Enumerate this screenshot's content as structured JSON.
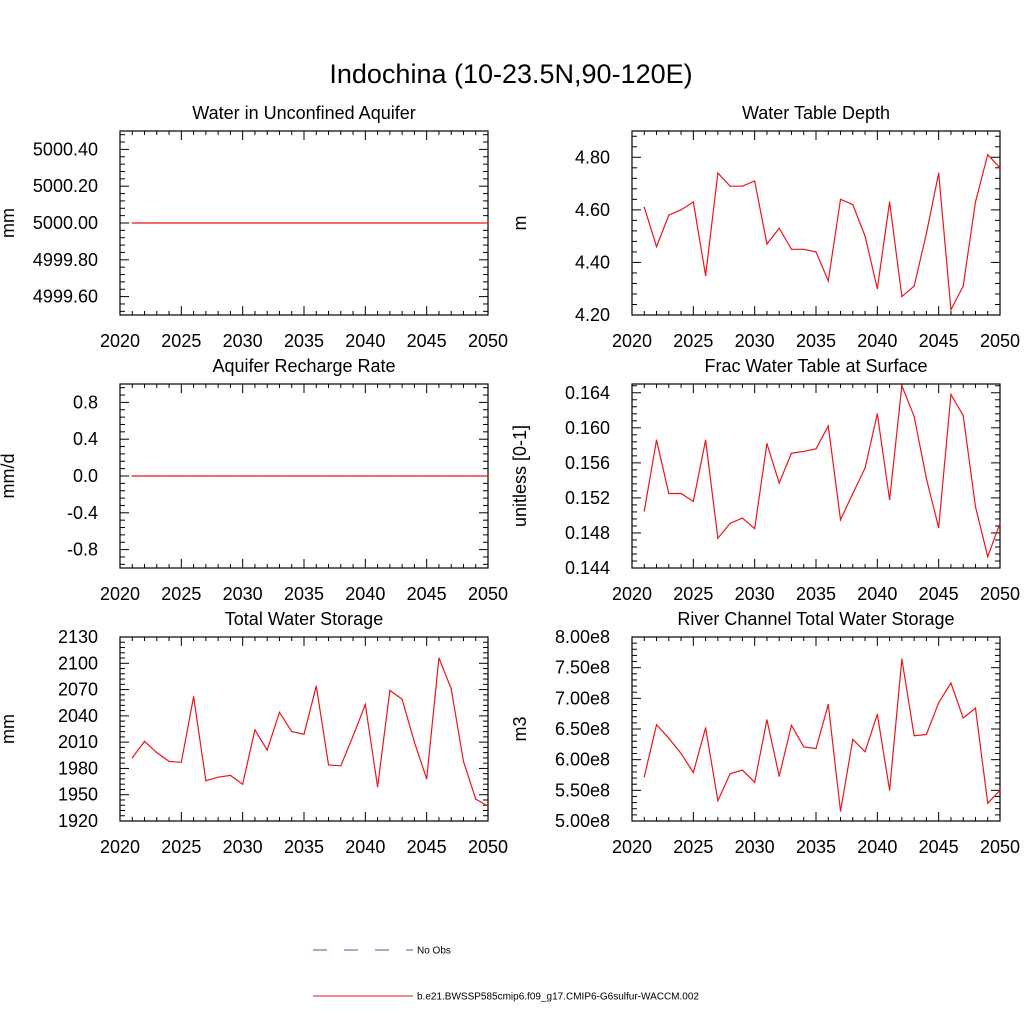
{
  "figure": {
    "title": "Indochina (10-23.5N,90-120E)"
  },
  "colors": {
    "series_line": "#e8161b",
    "obs_line": "#4a5aa8",
    "axis": "#000000",
    "background": "#ffffff"
  },
  "legend": {
    "entries": [
      {
        "label": "No Obs",
        "style": "dashed",
        "color": "#4a5aa8"
      },
      {
        "label": "b.e21.BWSSP585cmip6.f09_g17.CMIP6-G6sulfur-WACCM.002",
        "style": "solid",
        "color": "#e8161b"
      }
    ]
  },
  "chart_data": [
    {
      "type": "line",
      "title": "Water in Unconfined Aquifer",
      "ylabel": "mm",
      "xlim": [
        2020,
        2050
      ],
      "ylim": [
        4999.5,
        5000.5
      ],
      "xticks": [
        2020,
        2025,
        2030,
        2035,
        2040,
        2045,
        2050
      ],
      "xticklabels": [
        "2020",
        "2025",
        "2030",
        "2035",
        "2040",
        "2045",
        "2050"
      ],
      "yticks": [
        4999.6,
        4999.8,
        5000.0,
        5000.2,
        5000.4
      ],
      "yticklabels": [
        "4999.60",
        "4999.80",
        "5000.00",
        "5000.20",
        "5000.40"
      ],
      "yminor_step": 0.04,
      "x": [
        2021,
        2022,
        2023,
        2024,
        2025,
        2026,
        2027,
        2028,
        2029,
        2030,
        2031,
        2032,
        2033,
        2034,
        2035,
        2036,
        2037,
        2038,
        2039,
        2040,
        2041,
        2042,
        2043,
        2044,
        2045,
        2046,
        2047,
        2048,
        2049,
        2050
      ],
      "series": [
        {
          "values": [
            5000,
            5000,
            5000,
            5000,
            5000,
            5000,
            5000,
            5000,
            5000,
            5000,
            5000,
            5000,
            5000,
            5000,
            5000,
            5000,
            5000,
            5000,
            5000,
            5000,
            5000,
            5000,
            5000,
            5000,
            5000,
            5000,
            5000,
            5000,
            5000,
            5000
          ]
        }
      ]
    },
    {
      "type": "line",
      "title": "Water Table Depth",
      "ylabel": "m",
      "xlim": [
        2020,
        2050
      ],
      "ylim": [
        4.2,
        4.9
      ],
      "xticks": [
        2020,
        2025,
        2030,
        2035,
        2040,
        2045,
        2050
      ],
      "xticklabels": [
        "2020",
        "2025",
        "2030",
        "2035",
        "2040",
        "2045",
        "2050"
      ],
      "yticks": [
        4.2,
        4.4,
        4.6,
        4.8
      ],
      "yticklabels": [
        "4.20",
        "4.40",
        "4.60",
        "4.80"
      ],
      "yminor_step": 0.04,
      "x": [
        2021,
        2022,
        2023,
        2024,
        2025,
        2026,
        2027,
        2028,
        2029,
        2030,
        2031,
        2032,
        2033,
        2034,
        2035,
        2036,
        2037,
        2038,
        2039,
        2040,
        2041,
        2042,
        2043,
        2044,
        2045,
        2046,
        2047,
        2048,
        2049,
        2050
      ],
      "series": [
        {
          "values": [
            4.61,
            4.46,
            4.58,
            4.6,
            4.63,
            4.35,
            4.74,
            4.69,
            4.69,
            4.71,
            4.47,
            4.53,
            4.45,
            4.45,
            4.44,
            4.33,
            4.64,
            4.62,
            4.5,
            4.3,
            4.63,
            4.27,
            4.31,
            4.51,
            4.74,
            4.22,
            4.31,
            4.63,
            4.81,
            4.76
          ]
        }
      ]
    },
    {
      "type": "line",
      "title": "Aquifer Recharge Rate",
      "ylabel": "mm/d",
      "xlim": [
        2020,
        2050
      ],
      "ylim": [
        -1.0,
        1.0
      ],
      "xticks": [
        2020,
        2025,
        2030,
        2035,
        2040,
        2045,
        2050
      ],
      "xticklabels": [
        "2020",
        "2025",
        "2030",
        "2035",
        "2040",
        "2045",
        "2050"
      ],
      "yticks": [
        -0.8,
        -0.4,
        0.0,
        0.4,
        0.8
      ],
      "yticklabels": [
        "-0.8",
        "-0.4",
        "0.0",
        "0.4",
        "0.8"
      ],
      "yminor_step": 0.08,
      "x": [
        2021,
        2022,
        2023,
        2024,
        2025,
        2026,
        2027,
        2028,
        2029,
        2030,
        2031,
        2032,
        2033,
        2034,
        2035,
        2036,
        2037,
        2038,
        2039,
        2040,
        2041,
        2042,
        2043,
        2044,
        2045,
        2046,
        2047,
        2048,
        2049,
        2050
      ],
      "series": [
        {
          "values": [
            0,
            0,
            0,
            0,
            0,
            0,
            0,
            0,
            0,
            0,
            0,
            0,
            0,
            0,
            0,
            0,
            0,
            0,
            0,
            0,
            0,
            0,
            0,
            0,
            0,
            0,
            0,
            0,
            0,
            0
          ]
        }
      ]
    },
    {
      "type": "line",
      "title": "Frac Water Table at Surface",
      "ylabel": "unitless [0-1]",
      "xlim": [
        2020,
        2050
      ],
      "ylim": [
        0.144,
        0.165
      ],
      "xticks": [
        2020,
        2025,
        2030,
        2035,
        2040,
        2045,
        2050
      ],
      "xticklabels": [
        "2020",
        "2025",
        "2030",
        "2035",
        "2040",
        "2045",
        "2050"
      ],
      "yticks": [
        0.144,
        0.148,
        0.152,
        0.156,
        0.16,
        0.164
      ],
      "yticklabels": [
        "0.144",
        "0.148",
        "0.152",
        "0.156",
        "0.160",
        "0.164"
      ],
      "yminor_step": 0.0008,
      "x": [
        2021,
        2022,
        2023,
        2024,
        2025,
        2026,
        2027,
        2028,
        2029,
        2030,
        2031,
        2032,
        2033,
        2034,
        2035,
        2036,
        2037,
        2038,
        2039,
        2040,
        2041,
        2042,
        2043,
        2044,
        2045,
        2046,
        2047,
        2048,
        2049,
        2050
      ],
      "series": [
        {
          "values": [
            0.1505,
            0.1586,
            0.1525,
            0.1525,
            0.1516,
            0.1586,
            0.1474,
            0.1491,
            0.1497,
            0.1485,
            0.1582,
            0.1537,
            0.1571,
            0.1573,
            0.1576,
            0.1602,
            0.1495,
            0.1525,
            0.1554,
            0.1616,
            0.1518,
            0.1648,
            0.1613,
            0.1542,
            0.1486,
            0.1638,
            0.1614,
            0.151,
            0.1453,
            0.1491
          ]
        }
      ]
    },
    {
      "type": "line",
      "title": "Total Water Storage",
      "ylabel": "mm",
      "xlim": [
        2020,
        2050
      ],
      "ylim": [
        1920,
        2130
      ],
      "xticks": [
        2020,
        2025,
        2030,
        2035,
        2040,
        2045,
        2050
      ],
      "xticklabels": [
        "2020",
        "2025",
        "2030",
        "2035",
        "2040",
        "2045",
        "2050"
      ],
      "yticks": [
        1920,
        1950,
        1980,
        2010,
        2040,
        2070,
        2100,
        2130
      ],
      "yticklabels": [
        "1920",
        "1950",
        "1980",
        "2010",
        "2040",
        "2070",
        "2100",
        "2130"
      ],
      "yminor_step": 6,
      "x": [
        2021,
        2022,
        2023,
        2024,
        2025,
        2026,
        2027,
        2028,
        2029,
        2030,
        2031,
        2032,
        2033,
        2034,
        2035,
        2036,
        2037,
        2038,
        2039,
        2040,
        2041,
        2042,
        2043,
        2044,
        2045,
        2046,
        2047,
        2048,
        2049,
        2050
      ],
      "series": [
        {
          "values": [
            1992,
            2011,
            1998,
            1988,
            1987,
            2062,
            1966,
            1970,
            1972,
            1962,
            2024,
            2001,
            2044,
            2022,
            2019,
            2074,
            1984,
            1983,
            2017,
            2053,
            1959,
            2069,
            2059,
            2010,
            1968,
            2106,
            2071,
            1988,
            1945,
            1937
          ]
        }
      ]
    },
    {
      "type": "line",
      "title": "River Channel Total Water Storage",
      "ylabel": "m3",
      "xlim": [
        2020,
        2050
      ],
      "ylim": [
        500000000.0,
        800000000.0
      ],
      "xticks": [
        2020,
        2025,
        2030,
        2035,
        2040,
        2045,
        2050
      ],
      "xticklabels": [
        "2020",
        "2025",
        "2030",
        "2035",
        "2040",
        "2045",
        "2050"
      ],
      "yticks": [
        500000000.0,
        550000000.0,
        600000000.0,
        650000000.0,
        700000000.0,
        750000000.0,
        800000000.0
      ],
      "yticklabels": [
        "5.00e8",
        "5.50e8",
        "6.00e8",
        "6.50e8",
        "7.00e8",
        "7.50e8",
        "8.00e8"
      ],
      "yminor_step": 10000000.0,
      "x": [
        2021,
        2022,
        2023,
        2024,
        2025,
        2026,
        2027,
        2028,
        2029,
        2030,
        2031,
        2032,
        2033,
        2034,
        2035,
        2036,
        2037,
        2038,
        2039,
        2040,
        2041,
        2042,
        2043,
        2044,
        2045,
        2046,
        2047,
        2048,
        2049,
        2050
      ],
      "series": [
        {
          "values": [
            572000000.0,
            657000000.0,
            635000000.0,
            610000000.0,
            579000000.0,
            652000000.0,
            533000000.0,
            577000000.0,
            583000000.0,
            563000000.0,
            665000000.0,
            573000000.0,
            656000000.0,
            621000000.0,
            618000000.0,
            690000000.0,
            516000000.0,
            633000000.0,
            613000000.0,
            674000000.0,
            550000000.0,
            764000000.0,
            639000000.0,
            641000000.0,
            693000000.0,
            725000000.0,
            668000000.0,
            684000000.0,
            529000000.0,
            550000000.0
          ]
        }
      ]
    }
  ]
}
